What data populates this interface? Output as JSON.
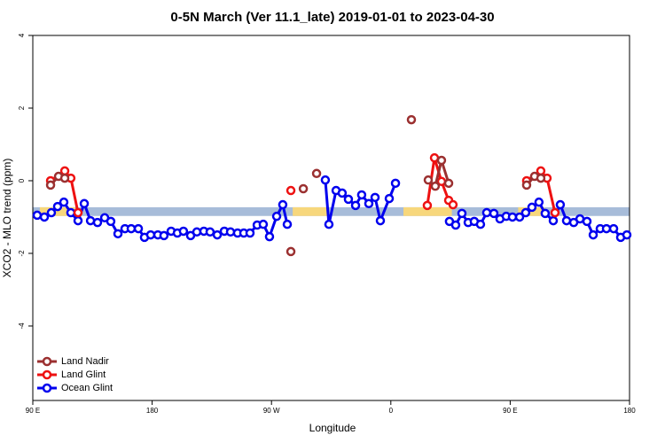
{
  "chart_data": {
    "type": "line",
    "title": "0-5N March (Ver 11.1_late)   2019-01-01 to 2023-04-30",
    "x_label": "Longitude",
    "y_label": "XCO2 - MLO trend (ppm)",
    "xlim": [
      90,
      540
    ],
    "xticks": [
      {
        "value": 90,
        "label": "90 E"
      },
      180,
      {
        "value": 270,
        "label": "90 W"
      },
      {
        "value": 360,
        "label": "0"
      },
      {
        "value": 450,
        "label": "90 E"
      },
      {
        "value": 540,
        "label": "180"
      }
    ],
    "ylim": [
      -6.05,
      4
    ],
    "yticks": [
      4,
      2,
      0,
      -2,
      -4
    ],
    "legend": "bottom-left",
    "reference_band": {
      "y": -0.85,
      "half_width": 0.12,
      "color": "#a7bcd9",
      "land_color": "#f7d77c",
      "land_ranges": [
        [
          95.3,
          122
        ],
        [
          286,
          313
        ],
        [
          369.5,
          406
        ],
        [
          456,
          476
        ]
      ]
    },
    "series": [
      {
        "name": "Land Nadir",
        "color": "#9b3030",
        "x": [
          103.4,
          109.4,
          114.1,
          200,
          284.6,
          290,
          294.0,
          300,
          304.0,
          340,
          375.5,
          380,
          388.2,
          393.5,
          398.2,
          403.6,
          430,
          462.4,
          468.4,
          473.1
        ],
        "values": [
          -0.12,
          0.12,
          0.07,
          null,
          -1.95,
          null,
          -0.22,
          null,
          0.2,
          null,
          1.68,
          null,
          0.02,
          -0.15,
          0.56,
          -0.07,
          null,
          -0.12,
          0.12,
          0.07
        ]
      },
      {
        "name": "Land Glint",
        "color": "#ee1111",
        "x": [
          103.4,
          114.1,
          118.7,
          124.1,
          200,
          284.6,
          340,
          387.5,
          392.9,
          398.2,
          403.6,
          406.9,
          430,
          462.4,
          473.1,
          477.8,
          483.8
        ],
        "values": [
          0.0,
          0.27,
          0.07,
          -0.88,
          null,
          -0.27,
          null,
          -0.68,
          0.63,
          -0.02,
          -0.54,
          -0.66,
          null,
          0.0,
          0.27,
          0.07,
          -0.88
        ]
      },
      {
        "name": "Ocean Glint",
        "color": "#0000ee",
        "x": [
          93.3,
          98.7,
          104.0,
          108.7,
          113.4,
          118.7,
          124.1,
          128.8,
          133.5,
          138.8,
          144.2,
          148.8,
          154.2,
          159.5,
          164.2,
          169.6,
          174.2,
          178.9,
          184.3,
          188.9,
          194.3,
          199.0,
          203.6,
          209.0,
          213.7,
          219.0,
          223.7,
          229.1,
          234.4,
          239.1,
          244.4,
          249.1,
          253.8,
          259.2,
          263.8,
          268.5,
          273.9,
          278.5,
          281.9,
          296,
          310.6,
          313.3,
          318.7,
          323.3,
          328.0,
          333.4,
          338.0,
          343.4,
          348.1,
          352.1,
          358.8,
          363.5,
          383.5,
          404.2,
          408.9,
          413.6,
          418.3,
          422.9,
          427.6,
          432.3,
          437.7,
          442.3,
          447.0,
          451.7,
          457.1,
          461.7,
          466.4,
          471.7,
          476.4,
          482.5,
          487.8,
          492.5,
          497.9,
          502.6,
          507.9,
          512.6,
          517.9,
          522.6,
          528.0,
          533.3,
          538.0
        ],
        "values": [
          -0.95,
          -1.0,
          -0.88,
          -0.71,
          -0.59,
          -0.88,
          -1.1,
          -0.63,
          -1.1,
          -1.15,
          -1.02,
          -1.12,
          -1.46,
          -1.32,
          -1.32,
          -1.32,
          -1.56,
          -1.49,
          -1.49,
          -1.51,
          -1.39,
          -1.44,
          -1.39,
          -1.51,
          -1.41,
          -1.39,
          -1.41,
          -1.49,
          -1.39,
          -1.41,
          -1.44,
          -1.44,
          -1.44,
          -1.22,
          -1.2,
          -1.54,
          -0.98,
          -0.66,
          -1.2,
          null,
          0.02,
          -1.2,
          -0.27,
          -0.34,
          -0.51,
          -0.68,
          -0.39,
          -0.63,
          -0.46,
          -1.1,
          -0.49,
          -0.07,
          null,
          -1.12,
          -1.22,
          -0.9,
          -1.15,
          -1.12,
          -1.2,
          -0.88,
          -0.9,
          -1.05,
          -0.98,
          -1.0,
          -1.0,
          -0.88,
          -0.73,
          -0.59,
          -0.9,
          -1.1,
          -0.66,
          -1.1,
          -1.15,
          -1.05,
          -1.12,
          -1.49,
          -1.32,
          -1.32,
          -1.32,
          -1.56,
          -1.49
        ]
      }
    ]
  }
}
